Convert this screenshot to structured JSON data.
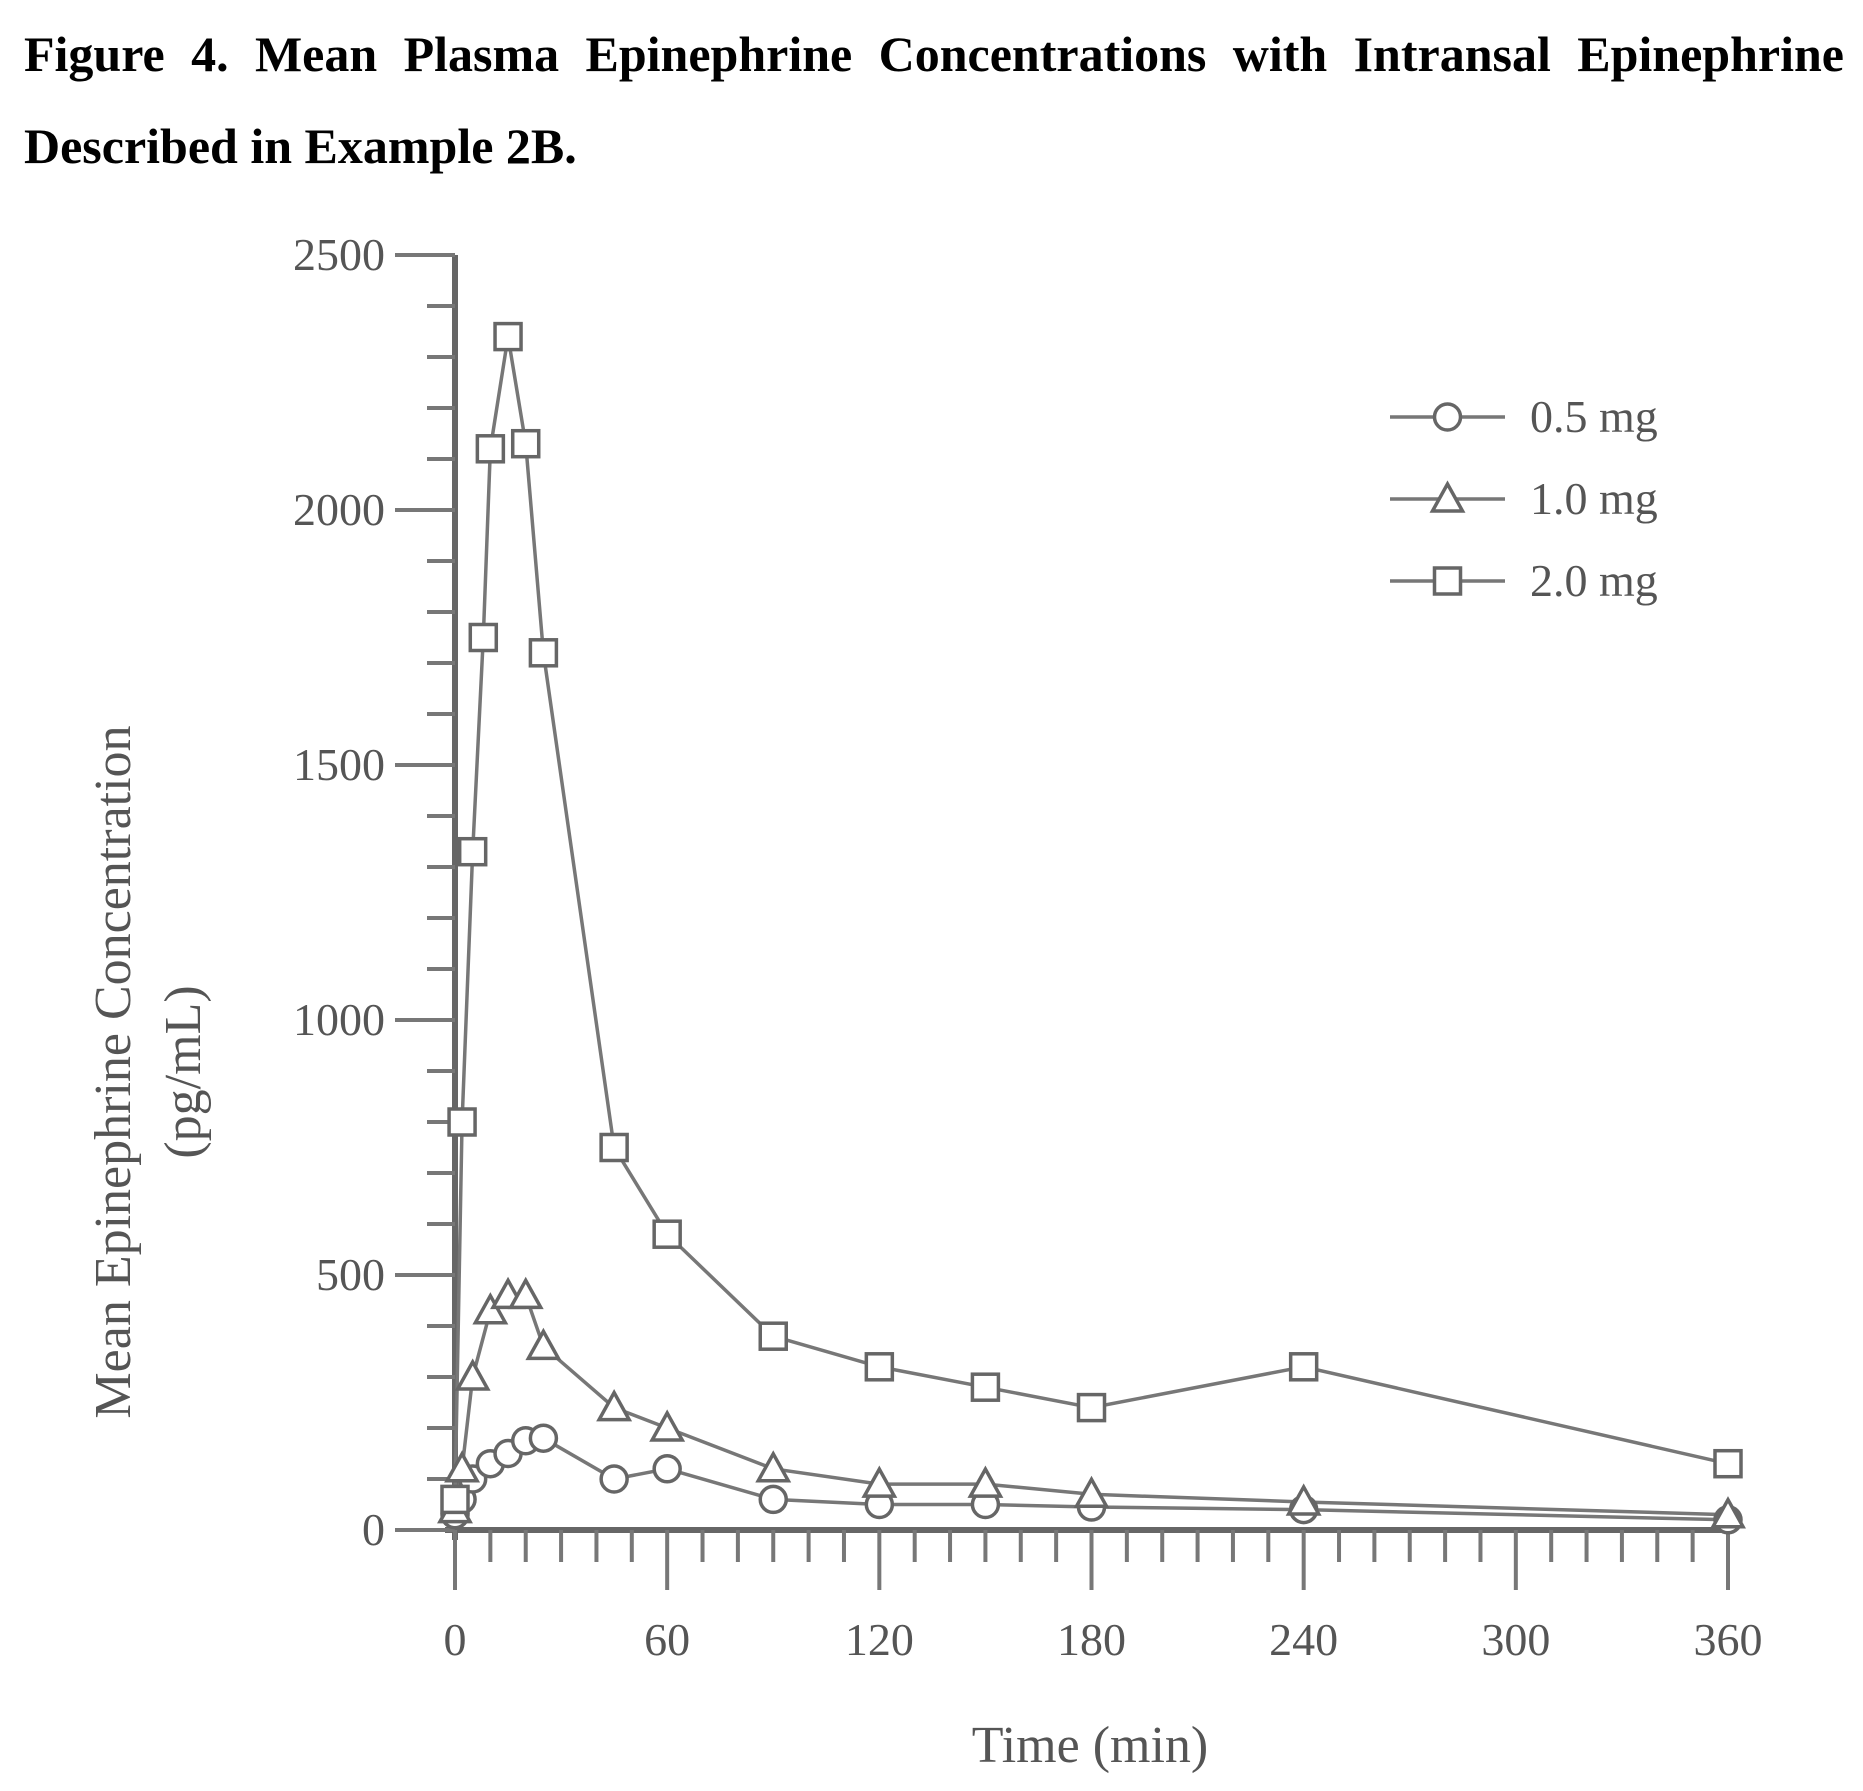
{
  "caption": "Figure 4. Mean Plasma Epinephrine Concentrations with Intransal Epinephrine Described in Example 2B.",
  "chart_data": {
    "type": "line",
    "title": "",
    "xlabel": "Time (min)",
    "ylabel_line1": "Mean Epinephrine Concentration",
    "ylabel_line2": "(pg/mL)",
    "xlim": [
      0,
      360
    ],
    "ylim": [
      0,
      2500
    ],
    "xticks": [
      0,
      60,
      120,
      180,
      240,
      300,
      360
    ],
    "yticks": [
      0,
      500,
      1000,
      1500,
      2000,
      2500
    ],
    "grid": false,
    "legend_position": "top-right",
    "series": [
      {
        "name": "0.5 mg",
        "marker": "circle",
        "color": "#777777",
        "x": [
          0,
          2,
          5,
          10,
          15,
          20,
          25,
          45,
          60,
          90,
          120,
          150,
          180,
          240,
          360
        ],
        "y": [
          30,
          60,
          100,
          130,
          150,
          175,
          180,
          100,
          120,
          60,
          50,
          50,
          45,
          40,
          20
        ]
      },
      {
        "name": "1.0 mg",
        "marker": "triangle",
        "color": "#777777",
        "x": [
          0,
          2,
          5,
          10,
          15,
          20,
          25,
          45,
          60,
          90,
          120,
          150,
          180,
          240,
          360
        ],
        "y": [
          40,
          120,
          300,
          430,
          460,
          460,
          360,
          240,
          200,
          120,
          90,
          90,
          70,
          55,
          30
        ]
      },
      {
        "name": "2.0 mg",
        "marker": "square",
        "color": "#777777",
        "x": [
          0,
          2,
          5,
          8,
          10,
          15,
          20,
          25,
          45,
          60,
          90,
          120,
          150,
          180,
          240,
          360
        ],
        "y": [
          60,
          800,
          1330,
          1750,
          2120,
          2340,
          2130,
          1720,
          750,
          580,
          380,
          320,
          280,
          240,
          320,
          130
        ]
      }
    ]
  }
}
